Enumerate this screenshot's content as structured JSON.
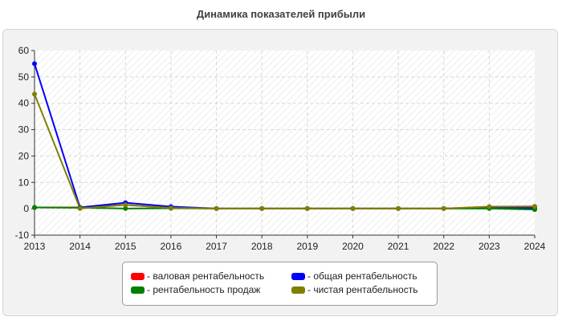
{
  "chart_data": {
    "type": "line",
    "title": "Динамика показателей прибыли",
    "x": [
      "2013",
      "2014",
      "2015",
      "2016",
      "2017",
      "2018",
      "2019",
      "2020",
      "2021",
      "2022",
      "2023",
      "2024"
    ],
    "ylim": [
      -10,
      60
    ],
    "yticks": [
      -10,
      0,
      10,
      20,
      30,
      40,
      50,
      60
    ],
    "grid": true,
    "legend_position": "bottom",
    "series": [
      {
        "name": "- валовая рентабельность",
        "color": "#ff0000",
        "values": [
          0.5,
          0.5,
          1.5,
          0.3,
          0.1,
          0.1,
          0.1,
          0.1,
          0.1,
          0.1,
          0.7,
          0.8
        ]
      },
      {
        "name": "- общая рентабельность",
        "color": "#0000ff",
        "values": [
          55,
          0.5,
          2.3,
          0.8,
          0.1,
          0.1,
          0.1,
          0.1,
          0.1,
          0.1,
          0.5,
          0.2
        ]
      },
      {
        "name": "- рентабельность продаж",
        "color": "#008000",
        "values": [
          0.5,
          0.4,
          0.1,
          0.2,
          0.1,
          0.1,
          0.1,
          0.1,
          0.1,
          0.1,
          0.1,
          -0.3
        ]
      },
      {
        "name": "- чистая рентабельность",
        "color": "#808000",
        "values": [
          43.5,
          0.1,
          1.5,
          0.3,
          0.1,
          0.1,
          0.1,
          0.1,
          0.1,
          0.1,
          0.8,
          0.9
        ]
      }
    ]
  }
}
